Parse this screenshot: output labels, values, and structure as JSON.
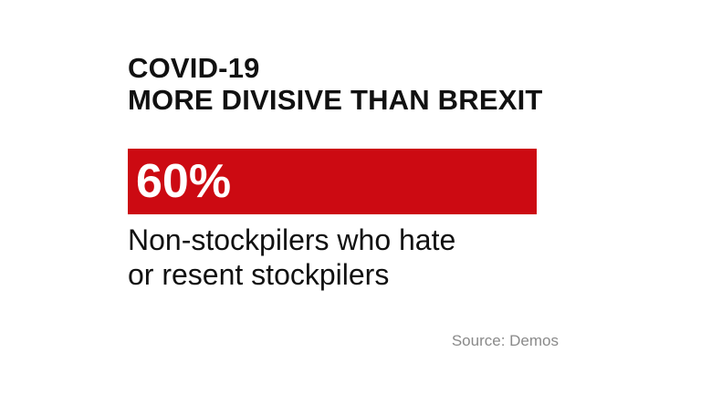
{
  "title": {
    "line1": "COVID-19",
    "line2": "MORE DIVISIVE THAN BREXIT"
  },
  "stat": {
    "value": "60%",
    "description_line1": "Non-stockpilers who hate",
    "description_line2": "or resent stockpilers"
  },
  "source": "Source: Demos",
  "colors": {
    "accent": "#cc0a12",
    "text": "#111111",
    "source": "#8a8a8a",
    "background": "#ffffff"
  }
}
